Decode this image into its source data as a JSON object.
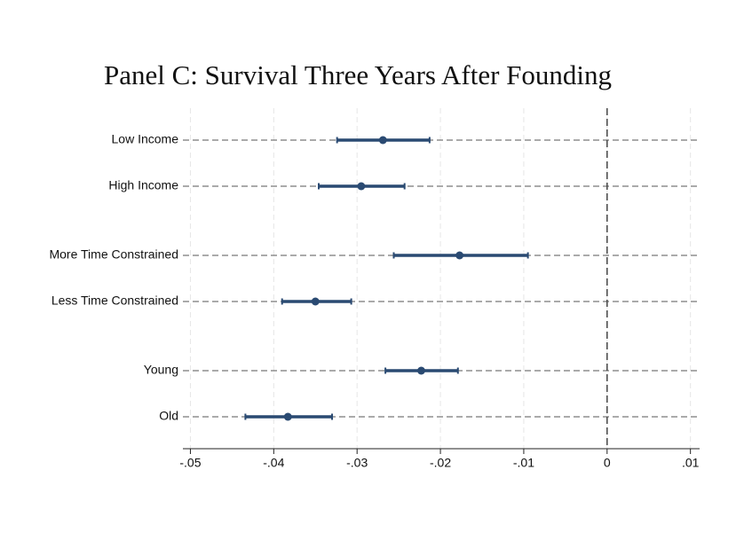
{
  "chart_data": {
    "type": "coefplot",
    "title": "Panel C: Survival Three Years After Founding",
    "categories": [
      "Low Income",
      "High Income",
      "More Time Constrained",
      "Less Time Constrained",
      "Young",
      "Old"
    ],
    "values": [
      -0.0269,
      -0.0295,
      -0.0177,
      -0.035,
      -0.0223,
      -0.0383
    ],
    "ci_low": [
      -0.0324,
      -0.0346,
      -0.0256,
      -0.039,
      -0.0266,
      -0.0434
    ],
    "ci_high": [
      -0.0213,
      -0.0243,
      -0.0095,
      -0.0307,
      -0.0179,
      -0.033
    ],
    "color": "#2a4a72",
    "xlim": [
      -0.0509,
      0.0111
    ],
    "xticks": [
      {
        "value": -0.05,
        "label": "-.05"
      },
      {
        "value": -0.04,
        "label": "-.04"
      },
      {
        "value": -0.03,
        "label": "-.03"
      },
      {
        "value": -0.02,
        "label": "-.02"
      },
      {
        "value": -0.01,
        "label": "-.01"
      },
      0,
      {
        "value": 0.01,
        "label": ".01"
      }
    ],
    "xline": 0,
    "grid": true
  }
}
